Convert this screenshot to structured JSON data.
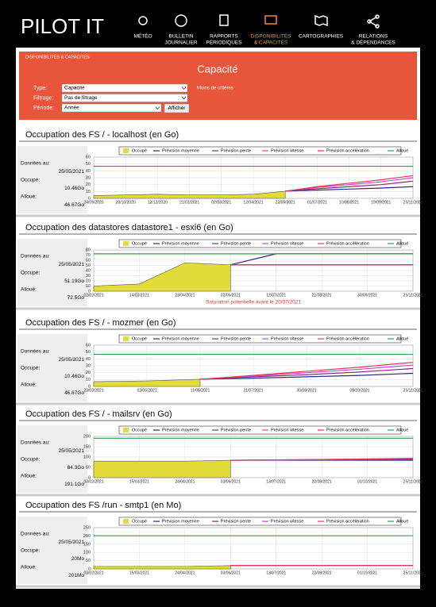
{
  "header": {
    "brand": "PILOT IT",
    "nav": [
      {
        "lines": [
          "MÉTÉO"
        ]
      },
      {
        "lines": [
          "BULLETIN",
          "JOURNALIER"
        ]
      },
      {
        "lines": [
          "RAPPORTS",
          "PÉRIODIQUES"
        ]
      },
      {
        "lines": [
          "DISPONIBILITÉS",
          "& CAPACITÉS"
        ],
        "active": true
      },
      {
        "lines": [
          "CARTOGRAPHIES"
        ]
      },
      {
        "lines": [
          "RELATIONS",
          "& DÉPENDANCES"
        ]
      }
    ]
  },
  "filters": {
    "breadcrumb": "DISPONIBILITÉS & CAPACITÉS",
    "title": "Capacité",
    "fields": [
      {
        "label": "Type:",
        "value": "Capacité"
      },
      {
        "label": "Filtrage:",
        "value": "Pas de filtrage"
      },
      {
        "label": "Période:",
        "value": "Année"
      }
    ],
    "link": "Moins de critères",
    "button": "Afficher"
  },
  "panels": [
    {
      "title": "Occupation des FS / - localhost (en Go)",
      "info": {
        "date_label": "Données au:",
        "date": "25/05/2021",
        "used_label": "Occupé:",
        "used": "10.46Go",
        "alloc_label": "Alloué:",
        "alloc": "46.67Go"
      },
      "chart": {
        "type": "line",
        "ylim": [
          0,
          60
        ],
        "yticks": [
          0,
          10,
          20,
          30,
          40,
          50,
          60
        ],
        "categories": [
          "24/09/2020",
          "20/10/2020",
          "12/12/2020",
          "21/01/2021",
          "02/03/2021",
          "12/04/2021",
          "22/05/2021",
          "01/07/2021",
          "10/08/2021",
          "19/09/2021",
          "25/11/2021"
        ],
        "series": [
          {
            "name": "Occupé",
            "color": "#e2dc3a",
            "area": true,
            "values": [
              4,
              5,
              6,
              5,
              5,
              6,
              10.46,
              null,
              null,
              null,
              null
            ]
          },
          {
            "name": "Prévision moyenne",
            "color": "#2b2b7c",
            "values": [
              null,
              null,
              null,
              null,
              null,
              null,
              10.46,
              12,
              13.5,
              15,
              17
            ]
          },
          {
            "name": "Prévision pente",
            "color": "#8a2a72",
            "values": [
              null,
              null,
              null,
              null,
              null,
              null,
              10.46,
              14,
              17,
              20,
              25
            ]
          },
          {
            "name": "Prévision vitesse",
            "color": "#cc44cc",
            "values": [
              null,
              null,
              null,
              null,
              null,
              null,
              10.46,
              16,
              20,
              24,
              30
            ]
          },
          {
            "name": "Prévision accélération",
            "color": "#e03a55",
            "values": [
              null,
              null,
              null,
              null,
              null,
              null,
              10.46,
              17,
              22,
              27,
              33
            ]
          },
          {
            "name": "Alloué",
            "color": "#3a9a4a",
            "values": [
              46.67,
              46.67,
              46.67,
              46.67,
              46.67,
              46.67,
              46.67,
              46.67,
              46.67,
              46.67,
              46.67
            ]
          }
        ]
      }
    },
    {
      "title": "Occupation des datastores datastore1 - esxi6 (en Go)",
      "info": {
        "date_label": "Données au:",
        "date": "25/05/2021",
        "used_label": "Occupé:",
        "used": "51.19Go",
        "alloc_label": "Alloué:",
        "alloc": "72.5Go"
      },
      "chart": {
        "type": "line",
        "ylim": [
          0,
          80
        ],
        "yticks": [
          0,
          10,
          20,
          30,
          40,
          50,
          60,
          70,
          80
        ],
        "categories": [
          "02/02/2021",
          "14/03/2021",
          "23/04/2021",
          "02/06/2021",
          "12/07/2021",
          "21/08/2021",
          "30/09/2021",
          "25/11/2021"
        ],
        "annotation": "Saturation potentielle avant le 20/07/2021",
        "series": [
          {
            "name": "Occupé",
            "color": "#e2dc3a",
            "area": true,
            "values": [
              10,
              14,
              55,
              51.19,
              null,
              null,
              null,
              null
            ]
          },
          {
            "name": "Prévision moyenne",
            "color": "#2b2b7c",
            "values": [
              null,
              null,
              null,
              51.19,
              72.5,
              72.5,
              72.5,
              72.5
            ]
          },
          {
            "name": "Prévision pente",
            "color": "#8a2a72",
            "values": [
              null,
              null,
              null,
              51.19,
              51.19,
              51.19,
              51.19,
              51.19
            ]
          },
          {
            "name": "Prévision vitesse",
            "color": "#cc44cc",
            "values": [
              null,
              null,
              null,
              51.19,
              51.19,
              51.19,
              51.19,
              51.19
            ]
          },
          {
            "name": "Prévision accélération",
            "color": "#e03a55",
            "values": [
              null,
              null,
              null,
              51.19,
              51.19,
              51.19,
              51.19,
              51.19
            ]
          },
          {
            "name": "Alloué",
            "color": "#3a9a4a",
            "values": [
              72.5,
              72.5,
              72.5,
              72.5,
              72.5,
              72.5,
              72.5,
              72.5
            ]
          }
        ]
      }
    },
    {
      "title": "Occupation des FS / - mozmer (en Go)",
      "info": {
        "date_label": "Données au:",
        "date": "25/05/2021",
        "used_label": "Occupé:",
        "used": "10.46Go",
        "alloc_label": "Alloué:",
        "alloc": "46.67Go"
      },
      "chart": {
        "type": "line",
        "ylim": [
          0,
          60
        ],
        "yticks": [
          0,
          10,
          20,
          30,
          40,
          50,
          60
        ],
        "categories": [
          "23/03/2021",
          "02/05/2021",
          "11/06/2021",
          "21/07/2021",
          "30/08/2021",
          "09/10/2021",
          "25/11/2021"
        ],
        "series": [
          {
            "name": "Occupé",
            "color": "#e2dc3a",
            "area": true,
            "values": [
              7,
              8,
              10.46,
              null,
              null,
              null,
              null
            ]
          },
          {
            "name": "Prévision moyenne",
            "color": "#2b2b7c",
            "values": [
              null,
              null,
              10.46,
              12,
              14,
              16,
              19
            ]
          },
          {
            "name": "Prévision pente",
            "color": "#8a2a72",
            "values": [
              null,
              null,
              10.46,
              14,
              17,
              21,
              26
            ]
          },
          {
            "name": "Prévision vitesse",
            "color": "#cc44cc",
            "values": [
              null,
              null,
              10.46,
              15,
              20,
              25,
              31
            ]
          },
          {
            "name": "Prévision accélération",
            "color": "#e03a55",
            "values": [
              null,
              null,
              10.46,
              16,
              22,
              28,
              35
            ]
          },
          {
            "name": "Alloué",
            "color": "#3a9a4a",
            "values": [
              46.67,
              46.67,
              46.67,
              46.67,
              46.67,
              46.67,
              46.67
            ]
          }
        ]
      }
    },
    {
      "title": "Occupation des FS / - mailsrv (en Go)",
      "info": {
        "date_label": "Données au:",
        "date": "25/05/2021",
        "used_label": "Occupé:",
        "used": "84.3Go",
        "alloc_label": "Alloué:",
        "alloc": "191.1Go"
      },
      "chart": {
        "type": "line",
        "ylim": [
          0,
          200
        ],
        "yticks": [
          0,
          50,
          100,
          150,
          200
        ],
        "categories": [
          "03/02/2021",
          "15/03/2021",
          "24/04/2021",
          "03/06/2021",
          "13/07/2021",
          "22/08/2021",
          "01/10/2021",
          "25/11/2021"
        ],
        "series": [
          {
            "name": "Occupé",
            "color": "#e2dc3a",
            "area": true,
            "values": [
              80,
              80,
              80,
              84.3,
              null,
              null,
              null,
              null
            ]
          },
          {
            "name": "Prévision moyenne",
            "color": "#2b2b7c",
            "values": [
              null,
              null,
              null,
              84.3,
              84.3,
              84.3,
              84.3,
              84.3
            ]
          },
          {
            "name": "Prévision pente",
            "color": "#8a2a72",
            "values": [
              null,
              null,
              null,
              84.3,
              85,
              86,
              87,
              88
            ]
          },
          {
            "name": "Prévision vitesse",
            "color": "#cc44cc",
            "values": [
              null,
              null,
              null,
              84.3,
              86,
              88,
              90,
              92
            ]
          },
          {
            "name": "Prévision accélération",
            "color": "#e03a55",
            "values": [
              null,
              null,
              null,
              84.3,
              86,
              88,
              91,
              94
            ]
          },
          {
            "name": "Alloué",
            "color": "#3a9a4a",
            "values": [
              191.1,
              191.1,
              191.1,
              191.1,
              191.1,
              191.1,
              191.1,
              191.1
            ]
          }
        ]
      }
    },
    {
      "title": "Occupation des FS /run - smtp1 (en Mo)",
      "info": {
        "date_label": "Données au:",
        "date": "25/05/2021",
        "used_label": "Occupé:",
        "used": "20Mo",
        "alloc_label": "Alloué:",
        "alloc": "201Mo"
      },
      "chart": {
        "type": "line",
        "ylim": [
          0,
          250
        ],
        "yticks": [
          0,
          50,
          100,
          150,
          200,
          250
        ],
        "categories": [
          "03/02/2021",
          "15/03/2021",
          "24/04/2021",
          "03/06/2021",
          "13/07/2021",
          "22/08/2021",
          "01/10/2021",
          "25/11/2021"
        ],
        "series": [
          {
            "name": "Occupé",
            "color": "#e2dc3a",
            "area": true,
            "values": [
              15,
              15,
              15,
              20,
              null,
              null,
              null,
              null
            ]
          },
          {
            "name": "Prévision moyenne",
            "color": "#2b2b7c",
            "values": [
              null,
              null,
              null,
              20,
              20,
              20,
              20,
              20
            ]
          },
          {
            "name": "Prévision pente",
            "color": "#8a2a72",
            "values": [
              null,
              null,
              null,
              20,
              20,
              20,
              20,
              20
            ]
          },
          {
            "name": "Prévision vitesse",
            "color": "#cc44cc",
            "values": [
              null,
              null,
              null,
              20,
              20,
              20,
              20,
              20
            ]
          },
          {
            "name": "Prévision accélération",
            "color": "#e03a55",
            "values": [
              null,
              null,
              null,
              20,
              20,
              20,
              20,
              20
            ]
          },
          {
            "name": "Alloué",
            "color": "#3a9a4a",
            "values": [
              201,
              201,
              201,
              201,
              201,
              201,
              201,
              201
            ]
          }
        ]
      }
    }
  ]
}
